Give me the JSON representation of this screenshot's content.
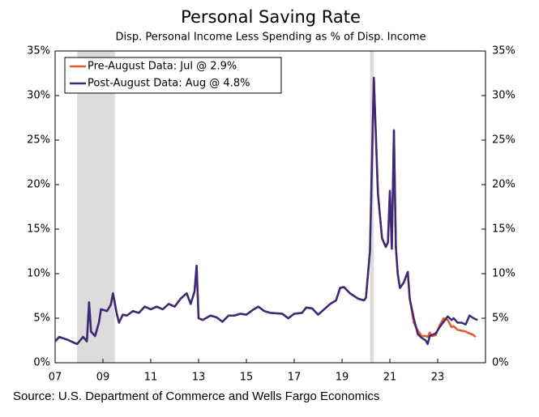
{
  "chart_data": {
    "type": "line",
    "title": "Personal Saving Rate",
    "subtitle": "Disp. Personal Income Less Spending as % of Disp. Income",
    "source": "Source: U.S. Department of Commerce and Wells Fargo Economics",
    "x": [
      2007.0,
      2007.17,
      2007.5,
      2007.75,
      2007.92,
      2008.17,
      2008.33,
      2008.42,
      2008.5,
      2008.67,
      2008.83,
      2008.92,
      2009.17,
      2009.33,
      2009.42,
      2009.58,
      2009.67,
      2009.83,
      2010.0,
      2010.25,
      2010.5,
      2010.75,
      2011.0,
      2011.25,
      2011.5,
      2011.75,
      2012.0,
      2012.25,
      2012.5,
      2012.67,
      2012.83,
      2012.92,
      2013.0,
      2013.17,
      2013.5,
      2013.75,
      2014.0,
      2014.25,
      2014.5,
      2014.75,
      2015.0,
      2015.25,
      2015.5,
      2015.75,
      2016.0,
      2016.5,
      2016.75,
      2017.0,
      2017.33,
      2017.5,
      2017.75,
      2018.0,
      2018.25,
      2018.5,
      2018.75,
      2018.92,
      2019.08,
      2019.33,
      2019.67,
      2019.92,
      2020.0,
      2020.17,
      2020.33,
      2020.5,
      2020.67,
      2020.83,
      2020.92,
      2021.0,
      2021.08,
      2021.17,
      2021.25,
      2021.33,
      2021.42,
      2021.58,
      2021.75,
      2021.83,
      2022.0,
      2022.17,
      2022.33,
      2022.5,
      2022.58,
      2022.67,
      2022.75,
      2022.92,
      2023.08,
      2023.25,
      2023.42,
      2023.58,
      2023.67,
      2023.83,
      2024.0,
      2024.17,
      2024.33,
      2024.5,
      2024.58,
      2024.67
    ],
    "series": [
      {
        "name": "Pre-August Data: Jul @ 2.9%",
        "color": "#e05a2b",
        "values": [
          2.4,
          2.9,
          2.6,
          2.3,
          2.1,
          2.9,
          2.4,
          6.8,
          3.5,
          3.0,
          4.5,
          6.0,
          5.8,
          6.5,
          7.8,
          5.5,
          4.5,
          5.4,
          5.3,
          5.8,
          5.6,
          6.3,
          6.0,
          6.3,
          6.0,
          6.6,
          6.3,
          7.2,
          7.8,
          6.6,
          8.0,
          10.9,
          5.0,
          4.8,
          5.3,
          5.1,
          4.6,
          5.3,
          5.3,
          5.5,
          5.4,
          5.9,
          6.3,
          5.8,
          5.6,
          5.5,
          5.0,
          5.5,
          5.6,
          6.2,
          6.1,
          5.4,
          6.0,
          6.6,
          7.0,
          8.4,
          8.5,
          7.8,
          7.2,
          7.0,
          7.3,
          12.6,
          32.0,
          19.0,
          14.0,
          13.0,
          13.5,
          19.3,
          12.8,
          26.1,
          13.0,
          10.0,
          8.4,
          9.0,
          10.2,
          7.2,
          4.5,
          3.6,
          3.0,
          3.0,
          2.9,
          3.4,
          3.0,
          3.1,
          4.2,
          5.0,
          4.8,
          4.0,
          4.1,
          3.7,
          3.6,
          3.5,
          3.3,
          3.1,
          2.9,
          null
        ]
      },
      {
        "name": "Post-August Data: Aug @ 4.8%",
        "color": "#3b2a7a",
        "values": [
          2.4,
          2.9,
          2.6,
          2.3,
          2.1,
          2.9,
          2.4,
          6.8,
          3.5,
          3.0,
          4.5,
          6.0,
          5.8,
          6.5,
          7.8,
          5.5,
          4.5,
          5.4,
          5.3,
          5.8,
          5.6,
          6.3,
          6.0,
          6.3,
          6.0,
          6.6,
          6.3,
          7.2,
          7.8,
          6.6,
          8.0,
          10.9,
          5.0,
          4.8,
          5.3,
          5.1,
          4.6,
          5.3,
          5.3,
          5.5,
          5.4,
          5.9,
          6.3,
          5.8,
          5.6,
          5.5,
          5.0,
          5.5,
          5.6,
          6.2,
          6.1,
          5.4,
          6.0,
          6.6,
          7.0,
          8.4,
          8.5,
          7.8,
          7.2,
          7.0,
          7.3,
          12.6,
          32.0,
          19.0,
          14.0,
          13.0,
          13.5,
          19.3,
          12.8,
          26.1,
          13.0,
          10.0,
          8.4,
          9.0,
          10.2,
          7.2,
          5.0,
          3.2,
          2.8,
          2.5,
          2.1,
          3.0,
          3.1,
          3.3,
          4.0,
          4.6,
          5.2,
          4.8,
          5.0,
          4.5,
          4.5,
          4.3,
          5.3,
          5.0,
          4.9,
          4.8
        ]
      }
    ],
    "recessions": [
      [
        2007.92,
        2009.5
      ],
      [
        2020.17,
        2020.33
      ]
    ],
    "xlim": [
      2007,
      2025
    ],
    "xticks": [
      {
        "value": 2007,
        "label": "07"
      },
      {
        "value": 2009,
        "label": "09"
      },
      {
        "value": 2011,
        "label": "11"
      },
      {
        "value": 2013,
        "label": "13"
      },
      {
        "value": 2015,
        "label": "15"
      },
      {
        "value": 2017,
        "label": "17"
      },
      {
        "value": 2019,
        "label": "19"
      },
      {
        "value": 2021,
        "label": "21"
      },
      {
        "value": 2023,
        "label": "23"
      }
    ],
    "ylim": [
      0,
      35
    ],
    "yticks": [
      {
        "value": 0,
        "label": "0%"
      },
      {
        "value": 5,
        "label": "5%"
      },
      {
        "value": 10,
        "label": "10%"
      },
      {
        "value": 15,
        "label": "15%"
      },
      {
        "value": 20,
        "label": "20%"
      },
      {
        "value": 25,
        "label": "25%"
      },
      {
        "value": 30,
        "label": "30%"
      },
      {
        "value": 35,
        "label": "35%"
      }
    ],
    "legend": "upper-left"
  }
}
